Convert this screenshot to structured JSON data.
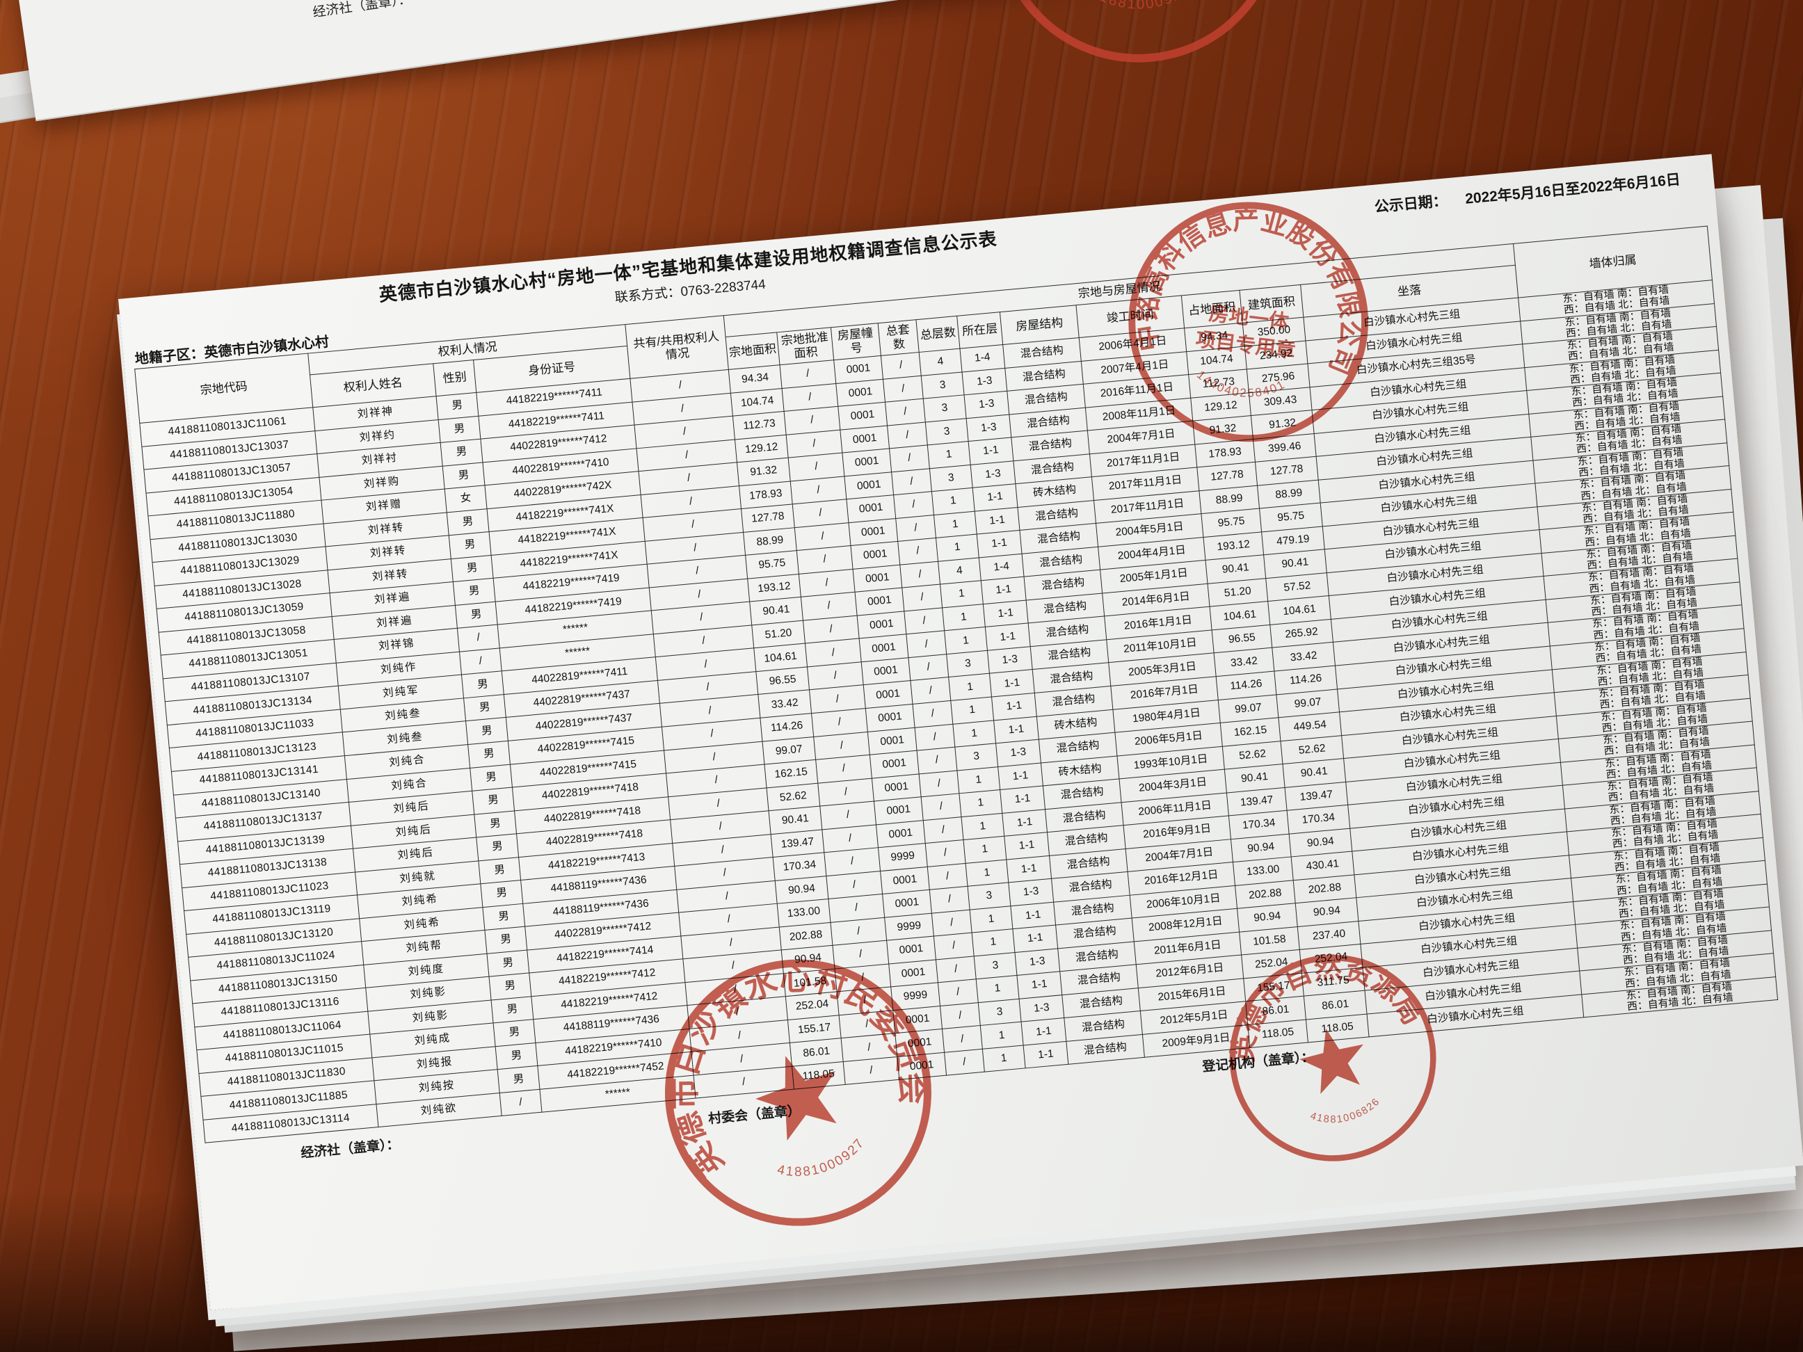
{
  "page": {
    "title": "英德市白沙镇水心村“房地一体”宅基地和集体建设用地权籍调查信息公示表",
    "publish_date_label": "公示日期：",
    "publish_date_value": "2022年5月16日至2022年6月16日",
    "contact": "联系方式：0763-2283744",
    "district_label": "地籍子区：英德市白沙镇水心村"
  },
  "colors": {
    "stamp_red": "#c2402f",
    "paper": "#f3f3f1",
    "wood": "#7c3013"
  },
  "table": {
    "group_headers": {
      "owner_info": "权利人情况",
      "parcel_house_info": "宗地与房屋情况"
    },
    "headers": {
      "code": "宗地代码",
      "name": "权利人姓名",
      "gender": "性别",
      "id_no": "身份证号",
      "shared": "共有/共用权利人情况",
      "area": "宗地面积",
      "approved": "宗地批准面积",
      "house_no": "房屋幢号",
      "units": "总套数",
      "floors": "总层数",
      "floor_range": "所在层",
      "structure": "房屋结构",
      "built_date": "竣工时间",
      "footprint": "占地面积",
      "building_area": "建筑面积",
      "location": "坐落",
      "wall": "墙体归属"
    },
    "column_keys": [
      "code",
      "name",
      "gender",
      "id_no",
      "shared",
      "area",
      "approved",
      "house_no",
      "units",
      "floors",
      "floor_range",
      "structure",
      "built_date",
      "footprint",
      "building_area",
      "location"
    ],
    "wall_lines": [
      "东：自有墙 南：自有墙",
      "西：自有墙 北：自有墙"
    ],
    "rows": [
      [
        "441881108013JC11061",
        "刘祥神",
        "男",
        "44182219******7411",
        "/",
        "94.34",
        "/",
        "0001",
        "/",
        "4",
        "1-4",
        "混合结构",
        "2006年4月1日",
        "94.34",
        "350.00",
        "白沙镇水心村先三组"
      ],
      [
        "441881108013JC13037",
        "刘祥约",
        "男",
        "44182219******7411",
        "/",
        "104.74",
        "/",
        "0001",
        "/",
        "3",
        "1-3",
        "混合结构",
        "2007年4月1日",
        "104.74",
        "234.92",
        "白沙镇水心村先三组"
      ],
      [
        "441881108013JC13057",
        "刘祥衬",
        "男",
        "44022819******7412",
        "/",
        "112.73",
        "/",
        "0001",
        "/",
        "3",
        "1-3",
        "混合结构",
        "2016年11月1日",
        "112.73",
        "275.96",
        "白沙镇水心村先三组35号"
      ],
      [
        "441881108013JC13054",
        "刘祥购",
        "男",
        "44022819******7410",
        "/",
        "129.12",
        "/",
        "0001",
        "/",
        "3",
        "1-3",
        "混合结构",
        "2008年11月1日",
        "129.12",
        "309.43",
        "白沙镇水心村先三组"
      ],
      [
        "441881108013JC11880",
        "刘祥赠",
        "女",
        "44022819******742X",
        "/",
        "91.32",
        "/",
        "0001",
        "/",
        "1",
        "1-1",
        "混合结构",
        "2004年7月1日",
        "91.32",
        "91.32",
        "白沙镇水心村先三组"
      ],
      [
        "441881108013JC13030",
        "刘祥转",
        "男",
        "44182219******741X",
        "/",
        "178.93",
        "/",
        "0001",
        "/",
        "3",
        "1-3",
        "混合结构",
        "2017年11月1日",
        "178.93",
        "399.46",
        "白沙镇水心村先三组"
      ],
      [
        "441881108013JC13029",
        "刘祥转",
        "男",
        "44182219******741X",
        "/",
        "127.78",
        "/",
        "0001",
        "/",
        "1",
        "1-1",
        "砖木结构",
        "2017年11月1日",
        "127.78",
        "127.78",
        "白沙镇水心村先三组"
      ],
      [
        "441881108013JC13028",
        "刘祥转",
        "男",
        "44182219******741X",
        "/",
        "88.99",
        "/",
        "0001",
        "/",
        "1",
        "1-1",
        "混合结构",
        "2017年11月1日",
        "88.99",
        "88.99",
        "白沙镇水心村先三组"
      ],
      [
        "441881108013JC13059",
        "刘祥遍",
        "男",
        "44182219******7419",
        "/",
        "95.75",
        "/",
        "0001",
        "/",
        "1",
        "1-1",
        "混合结构",
        "2004年5月1日",
        "95.75",
        "95.75",
        "白沙镇水心村先三组"
      ],
      [
        "441881108013JC13058",
        "刘祥遍",
        "男",
        "44182219******7419",
        "/",
        "193.12",
        "/",
        "0001",
        "/",
        "4",
        "1-4",
        "混合结构",
        "2004年4月1日",
        "193.12",
        "479.19",
        "白沙镇水心村先三组"
      ],
      [
        "441881108013JC13051",
        "刘祥锦",
        "/",
        "******",
        "/",
        "90.41",
        "/",
        "0001",
        "/",
        "1",
        "1-1",
        "混合结构",
        "2005年1月1日",
        "90.41",
        "90.41",
        "白沙镇水心村先三组"
      ],
      [
        "441881108013JC13107",
        "刘纯作",
        "/",
        "******",
        "/",
        "51.20",
        "/",
        "0001",
        "/",
        "1",
        "1-1",
        "混合结构",
        "2014年6月1日",
        "51.20",
        "57.52",
        "白沙镇水心村先三组"
      ],
      [
        "441881108013JC13134",
        "刘纯军",
        "男",
        "44022819******7411",
        "/",
        "104.61",
        "/",
        "0001",
        "/",
        "1",
        "1-1",
        "混合结构",
        "2016年1月1日",
        "104.61",
        "104.61",
        "白沙镇水心村先三组"
      ],
      [
        "441881108013JC11033",
        "刘纯叁",
        "男",
        "44022819******7437",
        "/",
        "96.55",
        "/",
        "0001",
        "/",
        "3",
        "1-3",
        "混合结构",
        "2011年10月1日",
        "96.55",
        "265.92",
        "白沙镇水心村先三组"
      ],
      [
        "441881108013JC13123",
        "刘纯叁",
        "男",
        "44022819******7437",
        "/",
        "33.42",
        "/",
        "0001",
        "/",
        "1",
        "1-1",
        "混合结构",
        "2005年3月1日",
        "33.42",
        "33.42",
        "白沙镇水心村先三组"
      ],
      [
        "441881108013JC13141",
        "刘纯合",
        "男",
        "44022819******7415",
        "/",
        "114.26",
        "/",
        "0001",
        "/",
        "1",
        "1-1",
        "混合结构",
        "2016年7月1日",
        "114.26",
        "114.26",
        "白沙镇水心村先三组"
      ],
      [
        "441881108013JC13140",
        "刘纯合",
        "男",
        "44022819******7415",
        "/",
        "99.07",
        "/",
        "0001",
        "/",
        "1",
        "1-1",
        "砖木结构",
        "1980年4月1日",
        "99.07",
        "99.07",
        "白沙镇水心村先三组"
      ],
      [
        "441881108013JC13137",
        "刘纯后",
        "男",
        "44022819******7418",
        "/",
        "162.15",
        "/",
        "0001",
        "/",
        "3",
        "1-3",
        "混合结构",
        "2006年5月1日",
        "162.15",
        "449.54",
        "白沙镇水心村先三组"
      ],
      [
        "441881108013JC13139",
        "刘纯后",
        "男",
        "44022819******7418",
        "/",
        "52.62",
        "/",
        "0001",
        "/",
        "1",
        "1-1",
        "砖木结构",
        "1993年10月1日",
        "52.62",
        "52.62",
        "白沙镇水心村先三组"
      ],
      [
        "441881108013JC13138",
        "刘纯后",
        "男",
        "44022819******7418",
        "/",
        "90.41",
        "/",
        "0001",
        "/",
        "1",
        "1-1",
        "混合结构",
        "2004年3月1日",
        "90.41",
        "90.41",
        "白沙镇水心村先三组"
      ],
      [
        "441881108013JC11023",
        "刘纯就",
        "男",
        "44182219******7413",
        "/",
        "139.47",
        "/",
        "0001",
        "/",
        "1",
        "1-1",
        "混合结构",
        "2006年11月1日",
        "139.47",
        "139.47",
        "白沙镇水心村先三组"
      ],
      [
        "441881108013JC13119",
        "刘纯希",
        "男",
        "44188119******7436",
        "/",
        "170.34",
        "/",
        "9999",
        "/",
        "1",
        "1-1",
        "混合结构",
        "2016年9月1日",
        "170.34",
        "170.34",
        "白沙镇水心村先三组"
      ],
      [
        "441881108013JC13120",
        "刘纯希",
        "男",
        "44188119******7436",
        "/",
        "90.94",
        "/",
        "0001",
        "/",
        "1",
        "1-1",
        "混合结构",
        "2004年7月1日",
        "90.94",
        "90.94",
        "白沙镇水心村先三组"
      ],
      [
        "441881108013JC11024",
        "刘纯帮",
        "男",
        "44022819******7412",
        "/",
        "133.00",
        "/",
        "0001",
        "/",
        "3",
        "1-3",
        "混合结构",
        "2016年12月1日",
        "133.00",
        "430.41",
        "白沙镇水心村先三组"
      ],
      [
        "441881108013JC13150",
        "刘纯度",
        "男",
        "44182219******7414",
        "/",
        "202.88",
        "/",
        "9999",
        "/",
        "1",
        "1-1",
        "混合结构",
        "2006年10月1日",
        "202.88",
        "202.88",
        "白沙镇水心村先三组"
      ],
      [
        "441881108013JC13116",
        "刘纯影",
        "男",
        "44182219******7412",
        "/",
        "90.94",
        "/",
        "0001",
        "/",
        "1",
        "1-1",
        "混合结构",
        "2008年12月1日",
        "90.94",
        "90.94",
        "白沙镇水心村先三组"
      ],
      [
        "441881108013JC11064",
        "刘纯影",
        "男",
        "44182219******7412",
        "/",
        "101.58",
        "/",
        "0001",
        "/",
        "3",
        "1-3",
        "混合结构",
        "2011年6月1日",
        "101.58",
        "237.40",
        "白沙镇水心村先三组"
      ],
      [
        "441881108013JC11015",
        "刘纯成",
        "男",
        "44188119******7436",
        "/",
        "252.04",
        "/",
        "9999",
        "/",
        "1",
        "1-1",
        "混合结构",
        "2012年6月1日",
        "252.04",
        "252.04",
        "白沙镇水心村先三组"
      ],
      [
        "441881108013JC11830",
        "刘纯报",
        "男",
        "44182219******7410",
        "/",
        "155.17",
        "/",
        "0001",
        "/",
        "3",
        "1-3",
        "混合结构",
        "2015年6月1日",
        "155.17",
        "311.75",
        "白沙镇水心村先三组"
      ],
      [
        "441881108013JC11885",
        "刘纯按",
        "男",
        "44182219******7452",
        "/",
        "86.01",
        "/",
        "0001",
        "/",
        "1",
        "1-1",
        "混合结构",
        "2012年5月1日",
        "86.01",
        "86.01",
        "白沙镇水心村先三组"
      ],
      [
        "441881108013JC13114",
        "刘纯欲",
        "/",
        "******",
        "/",
        "118.05",
        "/",
        "0001",
        "/",
        "1",
        "1-1",
        "混合结构",
        "2009年9月1日",
        "118.05",
        "118.05",
        "白沙镇水心村先三组"
      ]
    ]
  },
  "footer": {
    "econ_label": "经济社（盖章）：",
    "village_label": "村委会（盖章）",
    "registry_label": "登记机构（盖章）："
  },
  "back_sheet": {
    "econ_label": "经济社（盖章）："
  },
  "stamps": {
    "company": {
      "ring": "中铭高科信息产业股份有限公司",
      "inner": [
        "房地一体",
        "项目专用章"
      ],
      "digits": "91440402584013",
      "star": false,
      "ring_font": 21
    },
    "village": {
      "ring": "英德市白沙镇水心村民委员会",
      "inner": [],
      "digits": "4418810009277",
      "star": true,
      "ring_font": 23
    },
    "registry": {
      "ring": "英德市自然资源局",
      "inner": [],
      "digits": "4418810068264",
      "star": true,
      "ring_font": 26
    }
  }
}
